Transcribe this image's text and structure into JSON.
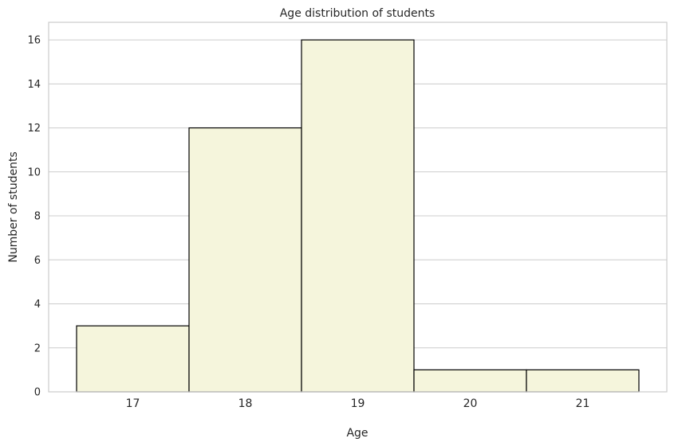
{
  "chart_data": {
    "type": "bar",
    "title": "Age distribution of students",
    "xlabel": "Age",
    "ylabel": "Number of students",
    "categories": [
      "17",
      "18",
      "19",
      "20",
      "21"
    ],
    "values": [
      3,
      12,
      16,
      1,
      1
    ],
    "ylim": [
      0,
      16.8
    ],
    "yticks": [
      0,
      2,
      4,
      6,
      8,
      10,
      12,
      14,
      16
    ],
    "grid": "horizontal",
    "bar_color": "#f5f5dc",
    "edge_color": "#000000",
    "grid_color": "#cccccc"
  }
}
